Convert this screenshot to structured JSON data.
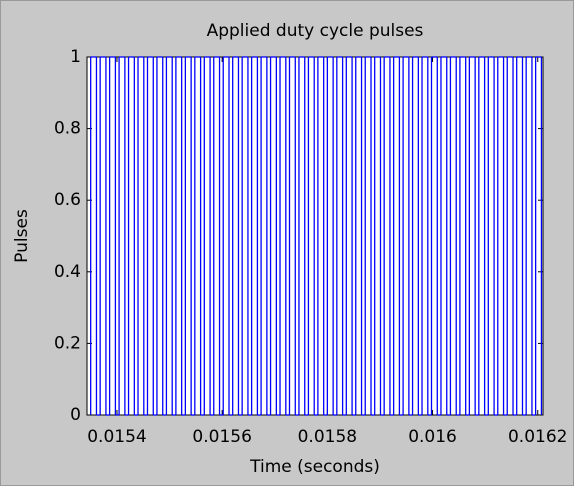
{
  "chart_data": {
    "type": "step",
    "title": "Applied duty cycle pulses",
    "xlabel": "Time (seconds)",
    "ylabel": "Pulses",
    "color": "#0000ff",
    "xlim": [
      0.015343,
      0.01621
    ],
    "ylim": [
      0,
      1
    ],
    "xticks": [
      0.0154,
      0.0156,
      0.0158,
      0.016,
      0.0162
    ],
    "yticks": [
      0,
      0.2,
      0.4,
      0.6,
      0.8,
      1
    ],
    "x": [
      0.01535,
      0.015361,
      0.015368,
      0.015379,
      0.015386,
      0.015397,
      0.015404,
      0.015415,
      0.015422,
      0.015433,
      0.01544,
      0.015451,
      0.015458,
      0.015469,
      0.015476,
      0.015487,
      0.015494,
      0.015505,
      0.015512,
      0.015523,
      0.01553,
      0.015541,
      0.015548,
      0.015559,
      0.015566,
      0.015577,
      0.015584,
      0.015595,
      0.015602,
      0.015613,
      0.01562,
      0.015631,
      0.015638,
      0.015649,
      0.015656,
      0.015667,
      0.015674,
      0.015685,
      0.015692,
      0.015703,
      0.01571,
      0.015721,
      0.015728,
      0.015739,
      0.015746,
      0.015757,
      0.015764,
      0.015775,
      0.015782,
      0.015793,
      0.0158,
      0.015811,
      0.015818,
      0.015829,
      0.015836,
      0.015847,
      0.015854,
      0.015865,
      0.015872,
      0.015883,
      0.01589,
      0.015901,
      0.015908,
      0.015919,
      0.015926,
      0.015937,
      0.015944,
      0.015955,
      0.015962,
      0.015973,
      0.01598,
      0.015991,
      0.015998,
      0.016009,
      0.016016,
      0.016027,
      0.016034,
      0.016045,
      0.016052,
      0.016063,
      0.01607,
      0.016081,
      0.016088,
      0.016099,
      0.016106,
      0.016117,
      0.016124,
      0.016135,
      0.016142,
      0.016153,
      0.01616,
      0.016171,
      0.016178,
      0.016189,
      0.016196,
      0.016207
    ],
    "values": [
      1,
      0,
      1,
      0,
      1,
      0,
      1,
      0,
      1,
      0,
      1,
      0,
      1,
      0,
      1,
      0,
      1,
      0,
      1,
      0,
      1,
      0,
      1,
      0,
      1,
      0,
      1,
      0,
      1,
      0,
      1,
      0,
      1,
      0,
      1,
      0,
      1,
      0,
      1,
      0,
      1,
      0,
      1,
      0,
      1,
      0,
      1,
      0,
      1,
      0,
      1,
      0,
      1,
      0,
      1,
      0,
      1,
      0,
      1,
      0,
      1,
      0,
      1,
      0,
      1,
      0,
      1,
      0,
      1,
      0,
      1,
      0,
      1,
      0,
      1,
      0,
      1,
      0,
      1,
      0,
      1,
      0,
      1,
      0,
      1,
      0,
      1,
      0,
      1,
      0,
      1,
      0,
      1,
      0,
      1,
      0
    ]
  }
}
